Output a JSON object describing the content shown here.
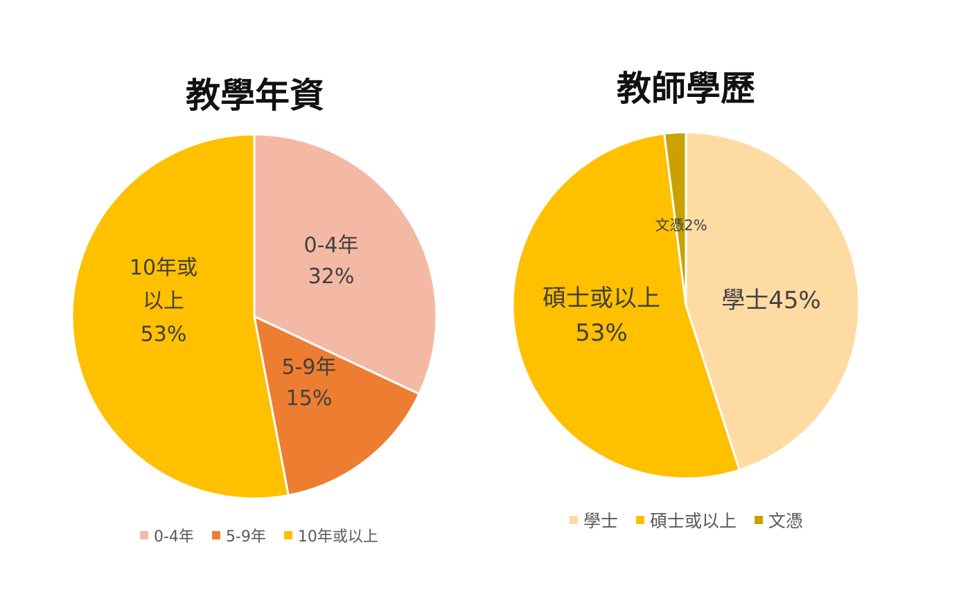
{
  "charts": [
    {
      "id": "left",
      "title": "教學年資",
      "chart_data": {
        "type": "pie",
        "title": "教學年資",
        "categories": [
          "0-4年",
          "5-9年",
          "10年或以上"
        ],
        "values": [
          32,
          15,
          53
        ],
        "data_labels": [
          [
            "0-4年",
            "32%"
          ],
          [
            "5-9年",
            "15%"
          ],
          [
            "10年或",
            "以上",
            "53%"
          ]
        ],
        "colors": [
          "#F4B9A5",
          "#ED7D31",
          "#FFC000"
        ],
        "legend_position": "bottom",
        "start_angle_deg": 0,
        "direction": "clockwise"
      }
    },
    {
      "id": "right",
      "title": "教師學歷",
      "chart_data": {
        "type": "pie",
        "title": "教師學歷",
        "categories": [
          "學士",
          "碩士或以上",
          "文憑"
        ],
        "values": [
          45,
          53,
          2
        ],
        "data_labels": [
          [
            "學士45%"
          ],
          [
            "碩士或以上",
            "53%"
          ],
          [
            "文憑2%"
          ]
        ],
        "colors": [
          "#FFDBA4",
          "#FFC000",
          "#C9A200"
        ],
        "legend_position": "bottom",
        "start_angle_deg": 0,
        "direction": "clockwise"
      }
    }
  ]
}
